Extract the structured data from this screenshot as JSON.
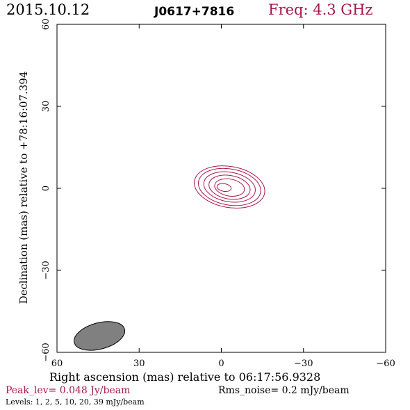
{
  "header": {
    "date": "2015.10.12",
    "source": "J0617+7816",
    "freq": "Freq: 4.3 GHz"
  },
  "colors": {
    "contour": "#a8174a",
    "beam": "#808080",
    "accent_text": "#a8174a"
  },
  "footer": {
    "peak": "Peak_lev=  0.048 Jy/beam",
    "rms": "Rms_noise=   0.2 mJy/beam",
    "levels": "Levels:   1,   2,   5,   10,   20,   39  mJy/beam"
  },
  "chart_data": {
    "type": "contour",
    "xlabel": "Right ascension (mas) relative to 06:17:56.9328",
    "ylabel": "Declination (mas) relative to +78:16:07.394",
    "xlim": [
      60,
      -60
    ],
    "ylim": [
      -60,
      60
    ],
    "xticks": [
      60,
      30,
      0,
      -30,
      -60
    ],
    "xtick_labels": [
      "60",
      "30",
      "0",
      "−30",
      "−60"
    ],
    "yticks": [
      -60,
      -30,
      0,
      30,
      60
    ],
    "ytick_labels": [
      "−60",
      "−30",
      "0",
      "30",
      "60"
    ],
    "contour_levels_mJy": [
      1,
      2,
      5,
      10,
      20,
      39
    ],
    "contours": [
      {
        "level": 1,
        "cx": -3,
        "cy": 0.5,
        "rx": 13.0,
        "ry": 7.5,
        "angle_deg": 10
      },
      {
        "level": 2,
        "cx": -3,
        "cy": 0.5,
        "rx": 11.5,
        "ry": 6.6,
        "angle_deg": 10
      },
      {
        "level": 5,
        "cx": -3,
        "cy": 0.5,
        "rx": 9.5,
        "ry": 5.4,
        "angle_deg": 10
      },
      {
        "level": 10,
        "cx": -3,
        "cy": 0.4,
        "rx": 7.6,
        "ry": 4.3,
        "angle_deg": 10
      },
      {
        "level": 20,
        "cx": -3,
        "cy": 0.3,
        "rx": 5.5,
        "ry": 3.1,
        "angle_deg": 10
      },
      {
        "level": 39,
        "cx": -1,
        "cy": 0.3,
        "rx": 2.6,
        "ry": 1.4,
        "angle_deg": 10
      }
    ],
    "beam": {
      "cx": 44.5,
      "cy": -54,
      "major": 9.5,
      "minor": 4.8,
      "angle_deg": 15
    }
  }
}
